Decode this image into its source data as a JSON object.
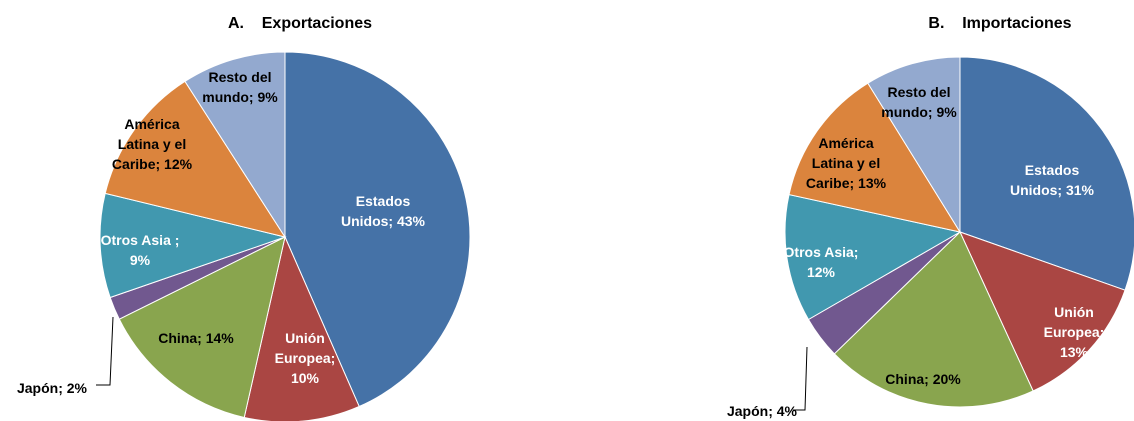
{
  "chart_data": [
    {
      "type": "pie",
      "title": "A.    Exportaciones",
      "categories": [
        "Estados Unidos",
        "Unión Europea",
        "China",
        "Japón",
        "Otros Asia",
        "América Latina y el Caribe",
        "Resto del mundo"
      ],
      "values": [
        43,
        10,
        14,
        2,
        9,
        12,
        9
      ],
      "labels": [
        [
          "Estados",
          "Unidos; 43%"
        ],
        [
          "Unión",
          "Europea;",
          "10%"
        ],
        [
          "China; 14%"
        ],
        [
          "Japón; 2%"
        ],
        [
          "Otros Asia ;",
          "9%"
        ],
        [
          "América",
          "Latina y el",
          "Caribe; 12%"
        ],
        [
          "Resto del",
          "mundo; 9%"
        ]
      ],
      "colors": [
        "#4572A7",
        "#AA4643",
        "#89A54E",
        "#71588F",
        "#4198AF",
        "#DB843D",
        "#93A9CF"
      ],
      "label_colors": [
        "#ffffff",
        "#ffffff",
        "#000000",
        "#000000",
        "#ffffff",
        "#000000",
        "#000000"
      ]
    },
    {
      "type": "pie",
      "title": "B.    Importaciones",
      "categories": [
        "Estados Unidos",
        "Unión Europea",
        "China",
        "Japón",
        "Otros Asia",
        "América Latina y el Caribe",
        "Resto del mundo"
      ],
      "values": [
        31,
        13,
        20,
        4,
        12,
        13,
        9
      ],
      "labels": [
        [
          "Estados",
          "Unidos; 31%"
        ],
        [
          "Unión",
          "Europea;",
          "13%"
        ],
        [
          "China; 20%"
        ],
        [
          "Japón; 4%"
        ],
        [
          "Otros Asia;",
          "12%"
        ],
        [
          "América",
          "Latina y el",
          "Caribe; 13%"
        ],
        [
          "Resto del",
          "mundo; 9%"
        ]
      ],
      "colors": [
        "#4572A7",
        "#AA4643",
        "#89A54E",
        "#71588F",
        "#4198AF",
        "#DB843D",
        "#93A9CF"
      ],
      "label_colors": [
        "#ffffff",
        "#ffffff",
        "#000000",
        "#000000",
        "#ffffff",
        "#000000",
        "#000000"
      ]
    }
  ]
}
